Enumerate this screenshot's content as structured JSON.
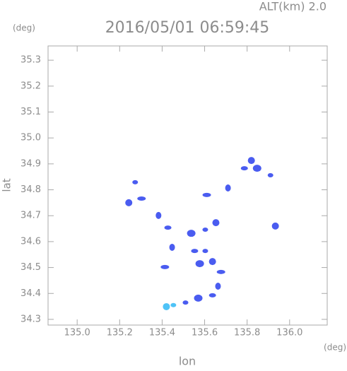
{
  "chart_data": {
    "type": "scatter",
    "title": "2016/05/01 06:59:45",
    "subtitle": "ALT(km) 2.0",
    "y_unit": "(deg)",
    "x_unit": "(deg)",
    "xlabel": "lon",
    "ylabel": "lat",
    "xlim": [
      134.863,
      136.177
    ],
    "ylim": [
      34.278,
      35.355
    ],
    "xticks": [
      {
        "value": 135,
        "label": "135.0"
      },
      135.2,
      135.4,
      135.6,
      135.8,
      {
        "value": 136,
        "label": "136.0"
      }
    ],
    "yticks": [
      34.3,
      34.4,
      34.5,
      34.6,
      34.7,
      34.8,
      34.9,
      {
        "value": 35,
        "label": "35.0"
      },
      35.1,
      35.2,
      35.3
    ],
    "series": [
      {
        "color": "#4a5cf0",
        "x": [
          135.273,
          135.243,
          135.303,
          135.383,
          135.427,
          135.537,
          135.603,
          135.653,
          135.61,
          135.71,
          135.787,
          135.847,
          135.91,
          135.933,
          135.413,
          135.447,
          135.553,
          135.577,
          135.603,
          135.637,
          135.677,
          135.663,
          135.637,
          135.57,
          135.51,
          135.82
        ],
        "values": [
          34.829,
          34.75,
          34.766,
          34.701,
          34.654,
          34.632,
          34.646,
          34.673,
          34.78,
          34.807,
          34.883,
          34.883,
          34.856,
          34.66,
          34.502,
          34.578,
          34.564,
          34.515,
          34.564,
          34.523,
          34.483,
          34.428,
          34.393,
          34.382,
          34.365,
          34.913
        ]
      },
      {
        "color": "#4fc3f7",
        "x": [
          135.453,
          135.42
        ],
        "values": [
          34.355,
          34.349
        ]
      }
    ]
  }
}
